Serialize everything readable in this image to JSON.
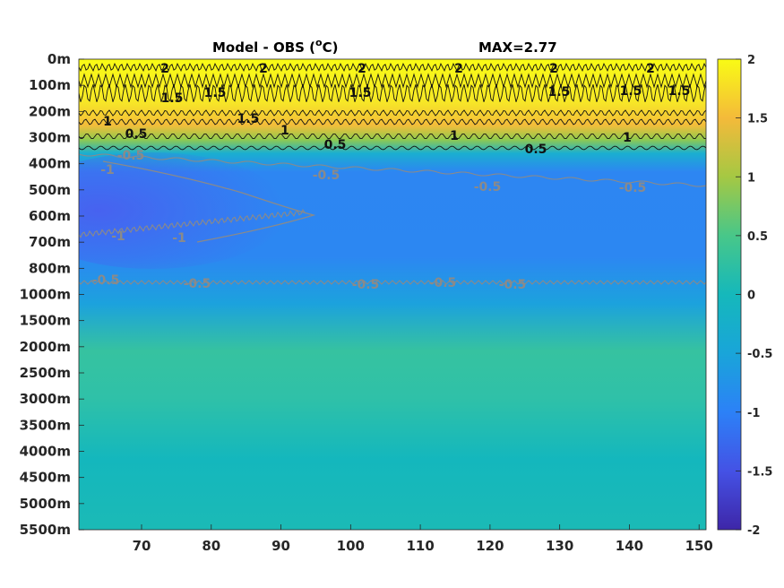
{
  "chart_data": {
    "type": "heatmap",
    "title": "Model - OBS (",
    "title_sup": "o",
    "title_tail": "C)",
    "max_label": "MAX=2.77",
    "x_ticks": [
      "70",
      "80",
      "90",
      "100",
      "110",
      "120",
      "130",
      "140",
      "150"
    ],
    "x_tick_values": [
      70,
      80,
      90,
      100,
      110,
      120,
      130,
      140,
      150
    ],
    "xlim": [
      61,
      151
    ],
    "y_ticks": [
      "0m",
      "100m",
      "200m",
      "300m",
      "400m",
      "500m",
      "600m",
      "700m",
      "800m",
      "1000m",
      "1500m",
      "2000m",
      "2500m",
      "3000m",
      "3500m",
      "4000m",
      "4500m",
      "5000m",
      "5500m"
    ],
    "colorbar": {
      "range": [
        -2,
        2
      ],
      "tick_labels": [
        "2",
        "1.5",
        "1",
        "0.5",
        "0",
        "-0.5",
        "-1",
        "-1.5",
        "-2"
      ],
      "tick_values": [
        2,
        1.5,
        1,
        0.5,
        0,
        -0.5,
        -1,
        -1.5,
        -2
      ],
      "colormap": "parula"
    },
    "depth_profile": [
      {
        "depth": "0m",
        "value": 2.0
      },
      {
        "depth": "100m",
        "value": 2.2
      },
      {
        "depth": "200m",
        "value": 1.7
      },
      {
        "depth": "300m",
        "value": 0.4
      },
      {
        "depth": "400m",
        "value": -0.6
      },
      {
        "depth": "500m",
        "value": -1.0
      },
      {
        "depth": "600m",
        "value": -1.0
      },
      {
        "depth": "700m",
        "value": -0.9
      },
      {
        "depth": "800m",
        "value": -0.8
      },
      {
        "depth": "1000m",
        "value": -0.55
      },
      {
        "depth": "1500m",
        "value": -0.35
      },
      {
        "depth": "2000m",
        "value": 0.1
      },
      {
        "depth": "2500m",
        "value": 0.25
      },
      {
        "depth": "3000m",
        "value": 0.15
      },
      {
        "depth": "3500m",
        "value": 0.05
      },
      {
        "depth": "4000m",
        "value": 0.0
      },
      {
        "depth": "4500m",
        "value": -0.1
      },
      {
        "depth": "5000m",
        "value": 0.0
      },
      {
        "depth": "5500m",
        "value": 0.05
      }
    ],
    "contour_labels": {
      "positive": [
        "2",
        "2",
        "2",
        "2",
        "2",
        "2",
        "1.5",
        "1.5",
        "1.5",
        "1.5",
        "1.5",
        "1.5",
        "1.5",
        "1",
        "1",
        "1",
        "1",
        "0.5",
        "0.5",
        "0.5"
      ],
      "negative": [
        "-0.5",
        "-1",
        "-1",
        "-0.5",
        "-0.5",
        "-0.5",
        "-1",
        "-0.5",
        "-0.5",
        "-0.5",
        "-0.5",
        "-0.5"
      ]
    }
  }
}
